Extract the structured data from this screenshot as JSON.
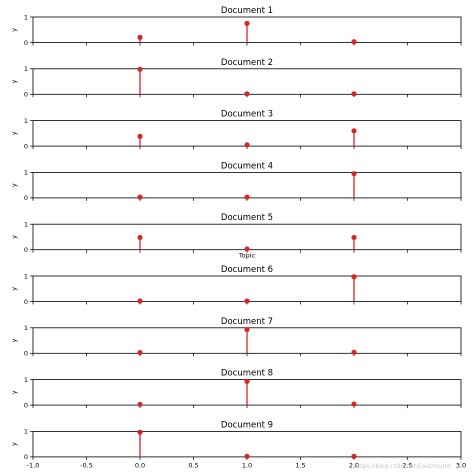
{
  "chart_data": {
    "type": "stem",
    "x": [
      0,
      1,
      2
    ],
    "xlim": [
      -1.0,
      3.0
    ],
    "xticks": [
      "-1.0",
      "-0.5",
      "0.0",
      "0.5",
      "1.0",
      "1.5",
      "2.0",
      "2.5",
      "3.0"
    ],
    "ylim": [
      0,
      1
    ],
    "yticks": [
      "0",
      "1"
    ],
    "ylabel": "y",
    "xlabel": "Topic",
    "color": "#d62728",
    "panels": [
      {
        "title": "Document 1",
        "values": [
          0.2,
          0.75,
          0.03
        ]
      },
      {
        "title": "Document 2",
        "values": [
          0.98,
          0.02,
          0.02
        ]
      },
      {
        "title": "Document 3",
        "values": [
          0.38,
          0.05,
          0.6
        ]
      },
      {
        "title": "Document 4",
        "values": [
          0.03,
          0.03,
          0.95
        ]
      },
      {
        "title": "Document 5",
        "values": [
          0.48,
          0.03,
          0.48
        ]
      },
      {
        "title": "Document 6",
        "values": [
          0.02,
          0.02,
          0.97
        ]
      },
      {
        "title": "Document 7",
        "values": [
          0.03,
          0.93,
          0.04
        ]
      },
      {
        "title": "Document 8",
        "values": [
          0.03,
          0.93,
          0.04
        ]
      },
      {
        "title": "Document 9",
        "values": [
          0.97,
          0.02,
          0.02
        ]
      }
    ]
  },
  "watermark": "https://blog.csdn.net/Eastmount"
}
